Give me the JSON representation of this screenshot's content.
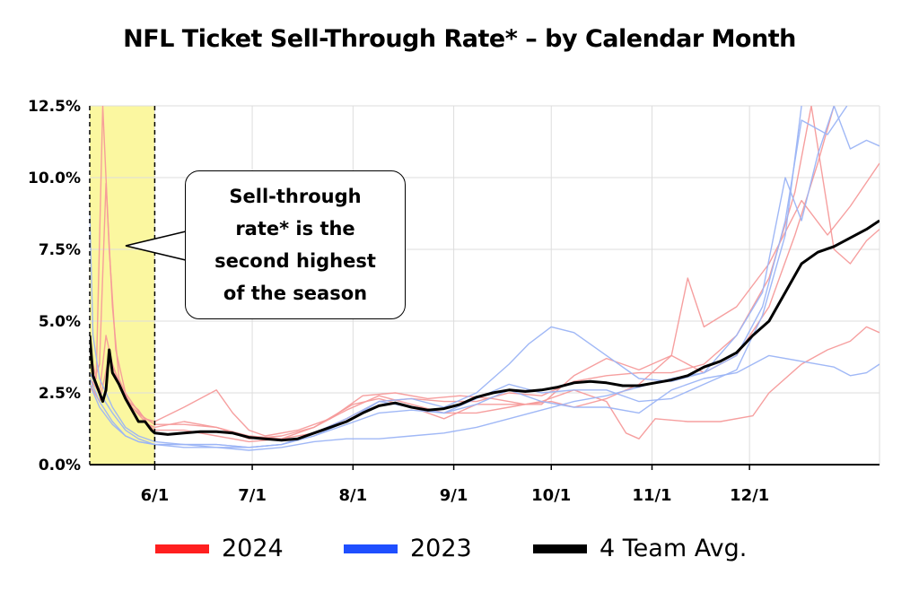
{
  "title": "NFL Ticket Sell-Through Rate* – by Calendar Month",
  "annotation": "Sell-through rate* is the second highest of the season",
  "legend": [
    {
      "label": "2024",
      "color": "#ff1f1f"
    },
    {
      "label": "2023",
      "color": "#1f4fff"
    },
    {
      "label": "4 Team Avg.",
      "color": "#000000"
    }
  ],
  "chart_data": {
    "type": "line",
    "xlabel": "",
    "ylabel": "",
    "x_ticks": [
      "6/1",
      "7/1",
      "8/1",
      "9/1",
      "10/1",
      "11/1",
      "12/1"
    ],
    "x_tick_days": [
      31,
      61,
      92,
      123,
      153,
      184,
      214
    ],
    "x_range_days": [
      11,
      254
    ],
    "y_ticks": [
      "0.0%",
      "2.5%",
      "5.0%",
      "7.5%",
      "10.0%",
      "12.5%"
    ],
    "ylim": [
      0,
      12.5
    ],
    "grid": true,
    "highlight_region": {
      "from_day": 11,
      "to_day": 31,
      "color": "#fbf7a0"
    },
    "series": [
      {
        "group": "2024",
        "color": "#f59a9a",
        "points": [
          [
            11,
            4.0
          ],
          [
            13,
            3.0
          ],
          [
            15,
            12.5
          ],
          [
            17,
            7.5
          ],
          [
            19,
            4.0
          ],
          [
            22,
            2.5
          ],
          [
            25,
            2.0
          ],
          [
            28,
            1.6
          ],
          [
            31,
            1.5
          ],
          [
            40,
            2.0
          ],
          [
            50,
            2.6
          ],
          [
            55,
            1.8
          ],
          [
            60,
            1.2
          ],
          [
            65,
            1.0
          ],
          [
            75,
            1.2
          ],
          [
            85,
            1.6
          ],
          [
            95,
            2.4
          ],
          [
            105,
            2.5
          ],
          [
            115,
            2.3
          ],
          [
            125,
            2.4
          ],
          [
            135,
            2.3
          ],
          [
            145,
            2.1
          ],
          [
            153,
            2.2
          ],
          [
            160,
            2.0
          ],
          [
            170,
            2.3
          ],
          [
            180,
            2.8
          ],
          [
            190,
            3.8
          ],
          [
            200,
            3.2
          ],
          [
            210,
            3.8
          ],
          [
            220,
            5.5
          ],
          [
            228,
            8.0
          ],
          [
            235,
            10.5
          ],
          [
            240,
            12.5
          ]
        ]
      },
      {
        "group": "2024",
        "color": "#f59a9a",
        "points": [
          [
            11,
            2.5
          ],
          [
            14,
            3.5
          ],
          [
            16,
            9.8
          ],
          [
            18,
            5.5
          ],
          [
            20,
            3.0
          ],
          [
            23,
            2.2
          ],
          [
            26,
            1.9
          ],
          [
            29,
            1.4
          ],
          [
            31,
            1.3
          ],
          [
            40,
            1.5
          ],
          [
            50,
            1.3
          ],
          [
            60,
            0.9
          ],
          [
            70,
            1.0
          ],
          [
            80,
            1.3
          ],
          [
            92,
            2.1
          ],
          [
            100,
            2.3
          ],
          [
            110,
            2.0
          ],
          [
            120,
            1.6
          ],
          [
            130,
            2.1
          ],
          [
            140,
            2.1
          ],
          [
            150,
            2.1
          ],
          [
            160,
            3.1
          ],
          [
            170,
            3.7
          ],
          [
            180,
            3.3
          ],
          [
            190,
            3.8
          ],
          [
            195,
            6.5
          ],
          [
            200,
            4.8
          ],
          [
            210,
            5.5
          ],
          [
            220,
            7.0
          ],
          [
            230,
            9.2
          ],
          [
            238,
            8.0
          ],
          [
            245,
            9.0
          ],
          [
            254,
            10.5
          ]
        ]
      },
      {
        "group": "2024",
        "color": "#f59a9a",
        "points": [
          [
            11,
            3.0
          ],
          [
            14,
            2.5
          ],
          [
            16,
            4.5
          ],
          [
            18,
            3.5
          ],
          [
            21,
            2.6
          ],
          [
            24,
            2.0
          ],
          [
            27,
            1.7
          ],
          [
            31,
            1.4
          ],
          [
            40,
            1.4
          ],
          [
            50,
            1.3
          ],
          [
            60,
            1.0
          ],
          [
            70,
            0.9
          ],
          [
            80,
            1.3
          ],
          [
            90,
            1.9
          ],
          [
            100,
            2.4
          ],
          [
            110,
            2.1
          ],
          [
            120,
            1.8
          ],
          [
            130,
            1.8
          ],
          [
            140,
            2.0
          ],
          [
            150,
            2.2
          ],
          [
            160,
            2.6
          ],
          [
            170,
            2.2
          ],
          [
            176,
            1.1
          ],
          [
            180,
            0.9
          ],
          [
            185,
            1.6
          ],
          [
            195,
            1.5
          ],
          [
            205,
            1.5
          ],
          [
            215,
            1.7
          ],
          [
            220,
            2.5
          ],
          [
            230,
            3.5
          ],
          [
            238,
            4.0
          ],
          [
            245,
            4.3
          ],
          [
            250,
            4.8
          ],
          [
            254,
            4.6
          ]
        ]
      },
      {
        "group": "2024",
        "color": "#f59a9a",
        "points": [
          [
            11,
            2.8
          ],
          [
            14,
            2.2
          ],
          [
            17,
            3.8
          ],
          [
            20,
            2.8
          ],
          [
            24,
            2.0
          ],
          [
            28,
            1.5
          ],
          [
            31,
            1.2
          ],
          [
            40,
            1.2
          ],
          [
            50,
            1.0
          ],
          [
            60,
            0.8
          ],
          [
            70,
            0.9
          ],
          [
            80,
            1.1
          ],
          [
            90,
            1.6
          ],
          [
            100,
            2.2
          ],
          [
            110,
            2.3
          ],
          [
            120,
            2.2
          ],
          [
            130,
            2.2
          ],
          [
            140,
            2.5
          ],
          [
            150,
            2.4
          ],
          [
            160,
            2.9
          ],
          [
            170,
            3.1
          ],
          [
            180,
            3.2
          ],
          [
            190,
            3.2
          ],
          [
            200,
            3.5
          ],
          [
            210,
            4.5
          ],
          [
            220,
            6.5
          ],
          [
            228,
            9.5
          ],
          [
            233,
            12.5
          ],
          [
            240,
            7.5
          ],
          [
            245,
            7.0
          ],
          [
            250,
            7.8
          ],
          [
            254,
            8.2
          ]
        ]
      },
      {
        "group": "2023",
        "color": "#9bb4f5",
        "points": [
          [
            11,
            8.8
          ],
          [
            12,
            4.5
          ],
          [
            14,
            3.0
          ],
          [
            18,
            2.0
          ],
          [
            22,
            1.3
          ],
          [
            26,
            1.0
          ],
          [
            31,
            0.8
          ],
          [
            40,
            0.7
          ],
          [
            50,
            0.6
          ],
          [
            60,
            0.6
          ],
          [
            70,
            0.7
          ],
          [
            80,
            1.1
          ],
          [
            90,
            1.6
          ],
          [
            100,
            2.2
          ],
          [
            110,
            2.3
          ],
          [
            120,
            2.0
          ],
          [
            130,
            2.5
          ],
          [
            140,
            3.5
          ],
          [
            146,
            4.2
          ],
          [
            153,
            4.8
          ],
          [
            160,
            4.6
          ],
          [
            170,
            3.8
          ],
          [
            180,
            3.0
          ],
          [
            190,
            2.9
          ],
          [
            200,
            3.2
          ],
          [
            210,
            4.5
          ],
          [
            218,
            6.0
          ],
          [
            225,
            10.0
          ],
          [
            230,
            8.5
          ],
          [
            235,
            10.8
          ],
          [
            240,
            12.5
          ],
          [
            245,
            11.0
          ],
          [
            250,
            11.3
          ],
          [
            254,
            11.1
          ]
        ]
      },
      {
        "group": "2023",
        "color": "#9bb4f5",
        "points": [
          [
            11,
            3.2
          ],
          [
            14,
            2.5
          ],
          [
            18,
            1.8
          ],
          [
            22,
            1.2
          ],
          [
            26,
            0.9
          ],
          [
            31,
            0.7
          ],
          [
            40,
            0.6
          ],
          [
            50,
            0.6
          ],
          [
            60,
            0.5
          ],
          [
            70,
            0.6
          ],
          [
            80,
            0.8
          ],
          [
            90,
            0.9
          ],
          [
            100,
            0.9
          ],
          [
            110,
            1.0
          ],
          [
            120,
            1.1
          ],
          [
            130,
            1.3
          ],
          [
            140,
            1.6
          ],
          [
            150,
            1.9
          ],
          [
            160,
            2.2
          ],
          [
            170,
            2.4
          ],
          [
            180,
            2.7
          ],
          [
            190,
            3.0
          ],
          [
            200,
            3.2
          ],
          [
            210,
            3.8
          ],
          [
            218,
            5.5
          ],
          [
            225,
            8.5
          ],
          [
            230,
            12.0
          ],
          [
            238,
            11.5
          ],
          [
            244,
            12.5
          ]
        ]
      },
      {
        "group": "2023",
        "color": "#9bb4f5",
        "points": [
          [
            11,
            3.0
          ],
          [
            14,
            2.2
          ],
          [
            18,
            1.5
          ],
          [
            22,
            1.0
          ],
          [
            26,
            0.8
          ],
          [
            31,
            0.7
          ],
          [
            40,
            0.7
          ],
          [
            50,
            0.7
          ],
          [
            60,
            0.6
          ],
          [
            70,
            0.7
          ],
          [
            80,
            1.0
          ],
          [
            90,
            1.5
          ],
          [
            100,
            2.2
          ],
          [
            110,
            2.0
          ],
          [
            120,
            1.8
          ],
          [
            130,
            2.1
          ],
          [
            140,
            2.6
          ],
          [
            150,
            2.2
          ],
          [
            160,
            2.0
          ],
          [
            170,
            2.0
          ],
          [
            180,
            1.8
          ],
          [
            190,
            2.6
          ],
          [
            200,
            3.0
          ],
          [
            210,
            3.2
          ],
          [
            220,
            3.8
          ],
          [
            230,
            3.6
          ],
          [
            240,
            3.4
          ],
          [
            245,
            3.1
          ],
          [
            250,
            3.2
          ],
          [
            254,
            3.5
          ]
        ]
      },
      {
        "group": "2023",
        "color": "#9bb4f5",
        "points": [
          [
            11,
            2.8
          ],
          [
            14,
            2.0
          ],
          [
            18,
            1.4
          ],
          [
            22,
            1.0
          ],
          [
            26,
            0.8
          ],
          [
            31,
            0.7
          ],
          [
            40,
            0.7
          ],
          [
            50,
            0.7
          ],
          [
            60,
            0.6
          ],
          [
            70,
            0.7
          ],
          [
            80,
            1.0
          ],
          [
            90,
            1.4
          ],
          [
            100,
            1.8
          ],
          [
            110,
            1.9
          ],
          [
            120,
            1.8
          ],
          [
            130,
            2.3
          ],
          [
            140,
            2.8
          ],
          [
            150,
            2.5
          ],
          [
            160,
            2.6
          ],
          [
            170,
            2.6
          ],
          [
            180,
            2.2
          ],
          [
            190,
            2.3
          ],
          [
            200,
            2.8
          ],
          [
            210,
            3.3
          ],
          [
            218,
            5.2
          ],
          [
            225,
            8.0
          ],
          [
            230,
            12.5
          ]
        ]
      },
      {
        "group": "avg",
        "color": "#000000",
        "points": [
          [
            11,
            4.5
          ],
          [
            12,
            3.1
          ],
          [
            14,
            2.5
          ],
          [
            15,
            2.2
          ],
          [
            16,
            2.6
          ],
          [
            17,
            4.0
          ],
          [
            18,
            3.2
          ],
          [
            20,
            2.8
          ],
          [
            22,
            2.3
          ],
          [
            24,
            1.9
          ],
          [
            26,
            1.5
          ],
          [
            28,
            1.5
          ],
          [
            30,
            1.2
          ],
          [
            31,
            1.1
          ],
          [
            35,
            1.05
          ],
          [
            40,
            1.1
          ],
          [
            45,
            1.15
          ],
          [
            50,
            1.15
          ],
          [
            55,
            1.1
          ],
          [
            60,
            0.95
          ],
          [
            65,
            0.9
          ],
          [
            70,
            0.85
          ],
          [
            75,
            0.9
          ],
          [
            80,
            1.1
          ],
          [
            85,
            1.3
          ],
          [
            90,
            1.5
          ],
          [
            95,
            1.8
          ],
          [
            100,
            2.05
          ],
          [
            105,
            2.15
          ],
          [
            110,
            2.0
          ],
          [
            115,
            1.9
          ],
          [
            120,
            1.95
          ],
          [
            125,
            2.1
          ],
          [
            130,
            2.35
          ],
          [
            135,
            2.5
          ],
          [
            140,
            2.6
          ],
          [
            145,
            2.55
          ],
          [
            150,
            2.6
          ],
          [
            155,
            2.7
          ],
          [
            160,
            2.85
          ],
          [
            165,
            2.9
          ],
          [
            170,
            2.85
          ],
          [
            175,
            2.75
          ],
          [
            180,
            2.75
          ],
          [
            185,
            2.85
          ],
          [
            190,
            2.95
          ],
          [
            195,
            3.1
          ],
          [
            200,
            3.4
          ],
          [
            205,
            3.6
          ],
          [
            210,
            3.9
          ],
          [
            215,
            4.5
          ],
          [
            220,
            5.0
          ],
          [
            225,
            6.0
          ],
          [
            230,
            7.0
          ],
          [
            235,
            7.4
          ],
          [
            240,
            7.6
          ],
          [
            245,
            7.9
          ],
          [
            250,
            8.2
          ],
          [
            254,
            8.5
          ]
        ]
      }
    ]
  }
}
